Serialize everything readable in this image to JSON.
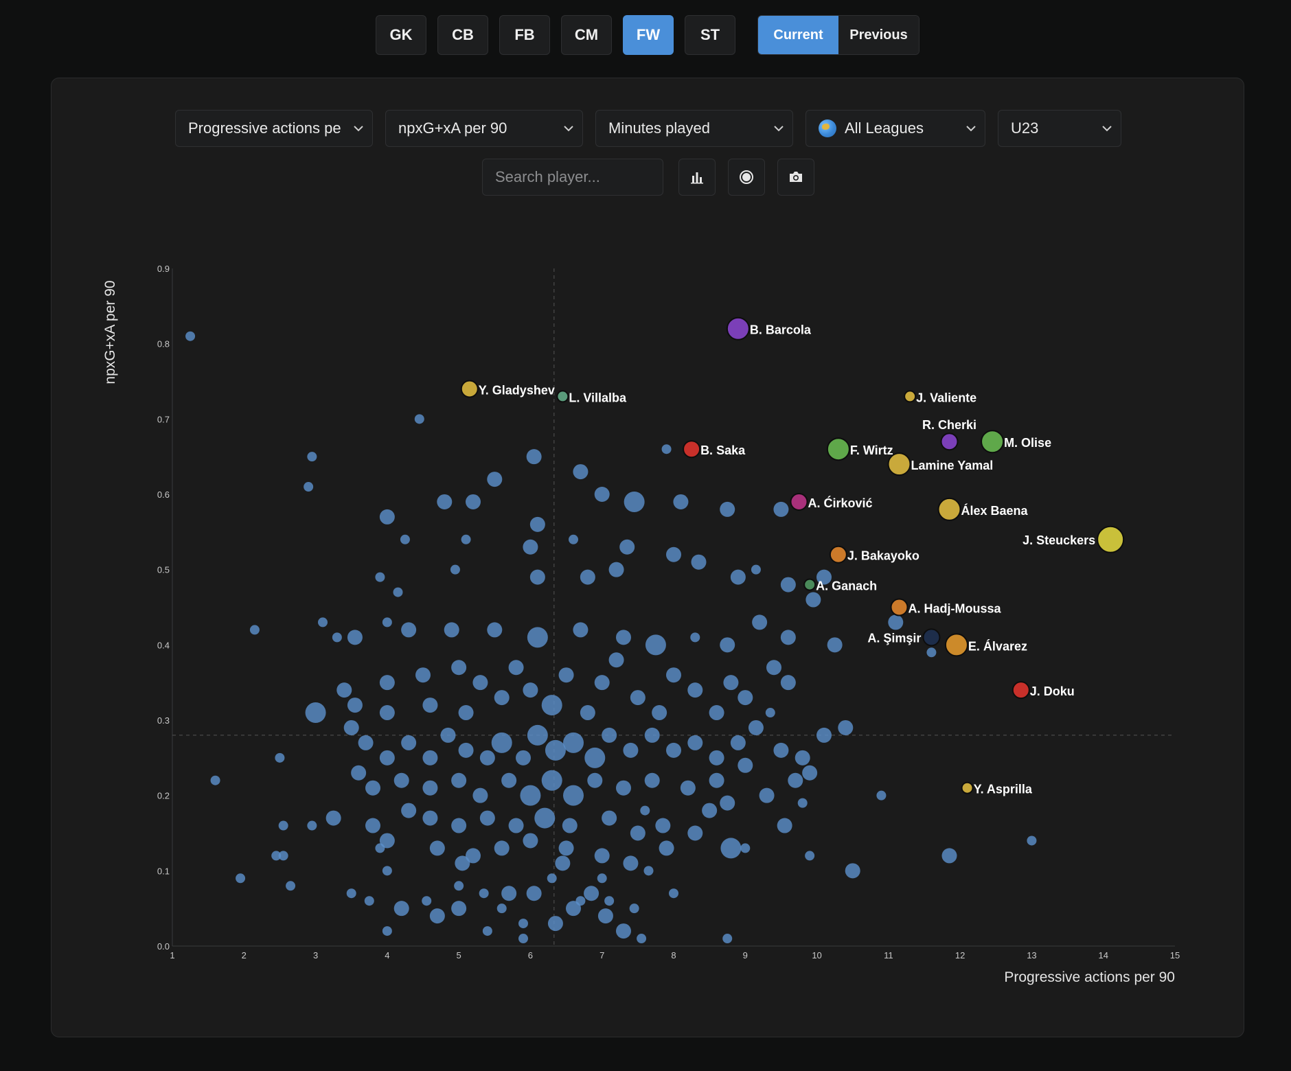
{
  "positions": [
    "GK",
    "CB",
    "FB",
    "CM",
    "FW",
    "ST"
  ],
  "active_position": "FW",
  "season_toggle": {
    "options": [
      "Current",
      "Previous"
    ],
    "active": "Current"
  },
  "filters": {
    "x_metric": "Progressive actions pe",
    "y_metric": "npxG+xA per 90",
    "size_metric": "Minutes played",
    "league": "All Leagues",
    "age": "U23"
  },
  "search": {
    "placeholder": "Search player..."
  },
  "toolbar_icons": [
    "bar-chart-icon",
    "bubble-icon",
    "camera-icon"
  ],
  "colors": {
    "accent": "#4a8fd9",
    "bubble": "#5b8fc9"
  },
  "chart_data": {
    "type": "scatter",
    "title": "",
    "xlabel": "Progressive actions per 90",
    "ylabel": "npxG+xA per 90",
    "xlim": [
      1,
      15
    ],
    "ylim": [
      0,
      0.9
    ],
    "xticks": [
      "1",
      "2",
      "3",
      "4",
      "5",
      "6",
      "7",
      "8",
      "9",
      "10",
      "11",
      "12",
      "13",
      "14",
      "15"
    ],
    "yticks": [
      "0.0",
      "0.1",
      "0.2",
      "0.3",
      "0.4",
      "0.5",
      "0.6",
      "0.7",
      "0.8",
      "0.9"
    ],
    "average_lines": {
      "x": 6.33,
      "y": 0.28
    },
    "grid": false,
    "size_encodes": "Minutes played",
    "highlighted": [
      {
        "name": "B. Barcola",
        "x": 8.9,
        "y": 0.82,
        "size": 3,
        "color": "#7b3fb8",
        "label_side": "right"
      },
      {
        "name": "Y. Gladyshev",
        "x": 5.15,
        "y": 0.74,
        "size": 2,
        "color": "#c8a83a",
        "label_side": "right"
      },
      {
        "name": "L. Villalba",
        "x": 6.45,
        "y": 0.73,
        "size": 1,
        "color": "#5a9a7a",
        "label_side": "right"
      },
      {
        "name": "J. Valiente",
        "x": 11.3,
        "y": 0.73,
        "size": 1,
        "color": "#c9a93b",
        "label_side": "right"
      },
      {
        "name": "R. Cherki",
        "x": 11.85,
        "y": 0.67,
        "size": 2,
        "color": "#7b3fb8",
        "label_side": "above"
      },
      {
        "name": "M. Olise",
        "x": 12.45,
        "y": 0.67,
        "size": 3,
        "color": "#5fa84a",
        "label_side": "right"
      },
      {
        "name": "B. Saka",
        "x": 8.25,
        "y": 0.66,
        "size": 2,
        "color": "#c8302a",
        "label_side": "right"
      },
      {
        "name": "F. Wirtz",
        "x": 10.3,
        "y": 0.66,
        "size": 3,
        "color": "#5fa84a",
        "label_side": "right"
      },
      {
        "name": "Lamine Yamal",
        "x": 11.15,
        "y": 0.64,
        "size": 3,
        "color": "#c9a93b",
        "label_side": "right"
      },
      {
        "name": "A. Ćirković",
        "x": 9.75,
        "y": 0.59,
        "size": 2,
        "color": "#a8307a",
        "label_side": "right"
      },
      {
        "name": "Álex Baena",
        "x": 11.85,
        "y": 0.58,
        "size": 3,
        "color": "#c9a93b",
        "label_side": "right"
      },
      {
        "name": "J. Steuckers",
        "x": 14.1,
        "y": 0.54,
        "size": 4,
        "color": "#c9c03a",
        "label_side": "left"
      },
      {
        "name": "J. Bakayoko",
        "x": 10.3,
        "y": 0.52,
        "size": 2,
        "color": "#cc7a2a",
        "label_side": "right"
      },
      {
        "name": "A. Ganach",
        "x": 9.9,
        "y": 0.48,
        "size": 1,
        "color": "#4a8a5a",
        "label_side": "right"
      },
      {
        "name": "A. Hadj-Moussa",
        "x": 11.15,
        "y": 0.45,
        "size": 2,
        "color": "#cc7a2a",
        "label_side": "right"
      },
      {
        "name": "A. Şimşir",
        "x": 11.6,
        "y": 0.41,
        "size": 2,
        "color": "#1d2d4a",
        "label_side": "left"
      },
      {
        "name": "E. Álvarez",
        "x": 11.95,
        "y": 0.4,
        "size": 3,
        "color": "#cc8a2a",
        "label_side": "right"
      },
      {
        "name": "J. Doku",
        "x": 12.85,
        "y": 0.34,
        "size": 2,
        "color": "#c8302a",
        "label_side": "right"
      },
      {
        "name": "Y. Asprilla",
        "x": 12.1,
        "y": 0.21,
        "size": 1,
        "color": "#c9a93b",
        "label_side": "right"
      }
    ],
    "others": [
      {
        "x": 1.25,
        "y": 0.81,
        "s": 1
      },
      {
        "x": 4.45,
        "y": 0.7,
        "s": 1
      },
      {
        "x": 2.95,
        "y": 0.65,
        "s": 1
      },
      {
        "x": 2.9,
        "y": 0.61,
        "s": 1
      },
      {
        "x": 6.05,
        "y": 0.65,
        "s": 2
      },
      {
        "x": 5.5,
        "y": 0.62,
        "s": 2
      },
      {
        "x": 6.7,
        "y": 0.63,
        "s": 2
      },
      {
        "x": 7.9,
        "y": 0.66,
        "s": 1
      },
      {
        "x": 4.8,
        "y": 0.59,
        "s": 2
      },
      {
        "x": 5.2,
        "y": 0.59,
        "s": 2
      },
      {
        "x": 7.0,
        "y": 0.6,
        "s": 2
      },
      {
        "x": 7.45,
        "y": 0.59,
        "s": 3
      },
      {
        "x": 8.1,
        "y": 0.59,
        "s": 2
      },
      {
        "x": 8.75,
        "y": 0.58,
        "s": 2
      },
      {
        "x": 9.5,
        "y": 0.58,
        "s": 2
      },
      {
        "x": 4.0,
        "y": 0.57,
        "s": 2
      },
      {
        "x": 6.1,
        "y": 0.56,
        "s": 2
      },
      {
        "x": 4.25,
        "y": 0.54,
        "s": 1
      },
      {
        "x": 5.1,
        "y": 0.54,
        "s": 1
      },
      {
        "x": 6.0,
        "y": 0.53,
        "s": 2
      },
      {
        "x": 6.6,
        "y": 0.54,
        "s": 1
      },
      {
        "x": 7.35,
        "y": 0.53,
        "s": 2
      },
      {
        "x": 8.0,
        "y": 0.52,
        "s": 2
      },
      {
        "x": 8.35,
        "y": 0.51,
        "s": 2
      },
      {
        "x": 3.9,
        "y": 0.49,
        "s": 1
      },
      {
        "x": 4.15,
        "y": 0.47,
        "s": 1
      },
      {
        "x": 4.95,
        "y": 0.5,
        "s": 1
      },
      {
        "x": 6.1,
        "y": 0.49,
        "s": 2
      },
      {
        "x": 6.8,
        "y": 0.49,
        "s": 2
      },
      {
        "x": 7.2,
        "y": 0.5,
        "s": 2
      },
      {
        "x": 8.9,
        "y": 0.49,
        "s": 2
      },
      {
        "x": 9.15,
        "y": 0.5,
        "s": 1
      },
      {
        "x": 9.6,
        "y": 0.48,
        "s": 2
      },
      {
        "x": 10.1,
        "y": 0.49,
        "s": 2
      },
      {
        "x": 9.95,
        "y": 0.46,
        "s": 2
      },
      {
        "x": 11.1,
        "y": 0.43,
        "s": 2
      },
      {
        "x": 10.25,
        "y": 0.4,
        "s": 2
      },
      {
        "x": 11.6,
        "y": 0.39,
        "s": 1
      },
      {
        "x": 3.1,
        "y": 0.43,
        "s": 1
      },
      {
        "x": 3.3,
        "y": 0.41,
        "s": 1
      },
      {
        "x": 3.55,
        "y": 0.41,
        "s": 2
      },
      {
        "x": 2.15,
        "y": 0.42,
        "s": 1
      },
      {
        "x": 4.0,
        "y": 0.43,
        "s": 1
      },
      {
        "x": 4.3,
        "y": 0.42,
        "s": 2
      },
      {
        "x": 4.9,
        "y": 0.42,
        "s": 2
      },
      {
        "x": 5.5,
        "y": 0.42,
        "s": 2
      },
      {
        "x": 6.1,
        "y": 0.41,
        "s": 3
      },
      {
        "x": 6.7,
        "y": 0.42,
        "s": 2
      },
      {
        "x": 7.3,
        "y": 0.41,
        "s": 2
      },
      {
        "x": 7.75,
        "y": 0.4,
        "s": 3
      },
      {
        "x": 8.3,
        "y": 0.41,
        "s": 1
      },
      {
        "x": 8.75,
        "y": 0.4,
        "s": 2
      },
      {
        "x": 9.2,
        "y": 0.43,
        "s": 2
      },
      {
        "x": 9.6,
        "y": 0.41,
        "s": 2
      },
      {
        "x": 9.4,
        "y": 0.37,
        "s": 2
      },
      {
        "x": 8.8,
        "y": 0.35,
        "s": 2
      },
      {
        "x": 3.4,
        "y": 0.34,
        "s": 2
      },
      {
        "x": 3.55,
        "y": 0.32,
        "s": 2
      },
      {
        "x": 3.0,
        "y": 0.31,
        "s": 3
      },
      {
        "x": 3.5,
        "y": 0.29,
        "s": 2
      },
      {
        "x": 4.0,
        "y": 0.35,
        "s": 2
      },
      {
        "x": 4.0,
        "y": 0.31,
        "s": 2
      },
      {
        "x": 4.5,
        "y": 0.36,
        "s": 2
      },
      {
        "x": 4.6,
        "y": 0.32,
        "s": 2
      },
      {
        "x": 5.0,
        "y": 0.37,
        "s": 2
      },
      {
        "x": 5.3,
        "y": 0.35,
        "s": 2
      },
      {
        "x": 5.1,
        "y": 0.31,
        "s": 2
      },
      {
        "x": 5.6,
        "y": 0.33,
        "s": 2
      },
      {
        "x": 5.8,
        "y": 0.37,
        "s": 2
      },
      {
        "x": 6.0,
        "y": 0.34,
        "s": 2
      },
      {
        "x": 6.3,
        "y": 0.32,
        "s": 3
      },
      {
        "x": 6.5,
        "y": 0.36,
        "s": 2
      },
      {
        "x": 6.8,
        "y": 0.31,
        "s": 2
      },
      {
        "x": 7.0,
        "y": 0.35,
        "s": 2
      },
      {
        "x": 7.2,
        "y": 0.38,
        "s": 2
      },
      {
        "x": 7.5,
        "y": 0.33,
        "s": 2
      },
      {
        "x": 7.8,
        "y": 0.31,
        "s": 2
      },
      {
        "x": 8.0,
        "y": 0.36,
        "s": 2
      },
      {
        "x": 8.3,
        "y": 0.34,
        "s": 2
      },
      {
        "x": 8.6,
        "y": 0.31,
        "s": 2
      },
      {
        "x": 9.0,
        "y": 0.33,
        "s": 2
      },
      {
        "x": 9.35,
        "y": 0.31,
        "s": 1
      },
      {
        "x": 9.6,
        "y": 0.35,
        "s": 2
      },
      {
        "x": 10.4,
        "y": 0.29,
        "s": 2
      },
      {
        "x": 10.1,
        "y": 0.28,
        "s": 2
      },
      {
        "x": 9.8,
        "y": 0.25,
        "s": 2
      },
      {
        "x": 9.5,
        "y": 0.26,
        "s": 2
      },
      {
        "x": 9.15,
        "y": 0.29,
        "s": 2
      },
      {
        "x": 8.9,
        "y": 0.27,
        "s": 2
      },
      {
        "x": 8.6,
        "y": 0.25,
        "s": 2
      },
      {
        "x": 8.3,
        "y": 0.27,
        "s": 2
      },
      {
        "x": 8.0,
        "y": 0.26,
        "s": 2
      },
      {
        "x": 7.7,
        "y": 0.28,
        "s": 2
      },
      {
        "x": 7.4,
        "y": 0.26,
        "s": 2
      },
      {
        "x": 7.1,
        "y": 0.28,
        "s": 2
      },
      {
        "x": 6.9,
        "y": 0.25,
        "s": 3
      },
      {
        "x": 6.6,
        "y": 0.27,
        "s": 3
      },
      {
        "x": 6.35,
        "y": 0.26,
        "s": 3
      },
      {
        "x": 6.1,
        "y": 0.28,
        "s": 3
      },
      {
        "x": 5.9,
        "y": 0.25,
        "s": 2
      },
      {
        "x": 5.6,
        "y": 0.27,
        "s": 3
      },
      {
        "x": 5.4,
        "y": 0.25,
        "s": 2
      },
      {
        "x": 5.1,
        "y": 0.26,
        "s": 2
      },
      {
        "x": 4.85,
        "y": 0.28,
        "s": 2
      },
      {
        "x": 4.6,
        "y": 0.25,
        "s": 2
      },
      {
        "x": 4.3,
        "y": 0.27,
        "s": 2
      },
      {
        "x": 4.0,
        "y": 0.25,
        "s": 2
      },
      {
        "x": 3.7,
        "y": 0.27,
        "s": 2
      },
      {
        "x": 3.6,
        "y": 0.23,
        "s": 2
      },
      {
        "x": 2.5,
        "y": 0.25,
        "s": 1
      },
      {
        "x": 1.6,
        "y": 0.22,
        "s": 1
      },
      {
        "x": 3.8,
        "y": 0.21,
        "s": 2
      },
      {
        "x": 4.2,
        "y": 0.22,
        "s": 2
      },
      {
        "x": 4.6,
        "y": 0.21,
        "s": 2
      },
      {
        "x": 5.0,
        "y": 0.22,
        "s": 2
      },
      {
        "x": 5.3,
        "y": 0.2,
        "s": 2
      },
      {
        "x": 5.7,
        "y": 0.22,
        "s": 2
      },
      {
        "x": 6.0,
        "y": 0.2,
        "s": 3
      },
      {
        "x": 6.3,
        "y": 0.22,
        "s": 3
      },
      {
        "x": 6.6,
        "y": 0.2,
        "s": 3
      },
      {
        "x": 6.9,
        "y": 0.22,
        "s": 2
      },
      {
        "x": 7.3,
        "y": 0.21,
        "s": 2
      },
      {
        "x": 7.7,
        "y": 0.22,
        "s": 2
      },
      {
        "x": 8.2,
        "y": 0.21,
        "s": 2
      },
      {
        "x": 8.6,
        "y": 0.22,
        "s": 2
      },
      {
        "x": 9.0,
        "y": 0.24,
        "s": 2
      },
      {
        "x": 9.3,
        "y": 0.2,
        "s": 2
      },
      {
        "x": 9.7,
        "y": 0.22,
        "s": 2
      },
      {
        "x": 10.9,
        "y": 0.2,
        "s": 1
      },
      {
        "x": 8.75,
        "y": 0.19,
        "s": 2
      },
      {
        "x": 8.5,
        "y": 0.18,
        "s": 2
      },
      {
        "x": 7.6,
        "y": 0.18,
        "s": 1
      },
      {
        "x": 3.25,
        "y": 0.17,
        "s": 2
      },
      {
        "x": 2.55,
        "y": 0.16,
        "s": 1
      },
      {
        "x": 2.95,
        "y": 0.16,
        "s": 1
      },
      {
        "x": 3.8,
        "y": 0.16,
        "s": 2
      },
      {
        "x": 4.3,
        "y": 0.18,
        "s": 2
      },
      {
        "x": 4.6,
        "y": 0.17,
        "s": 2
      },
      {
        "x": 5.0,
        "y": 0.16,
        "s": 2
      },
      {
        "x": 5.4,
        "y": 0.17,
        "s": 2
      },
      {
        "x": 5.8,
        "y": 0.16,
        "s": 2
      },
      {
        "x": 6.2,
        "y": 0.17,
        "s": 3
      },
      {
        "x": 6.55,
        "y": 0.16,
        "s": 2
      },
      {
        "x": 7.1,
        "y": 0.17,
        "s": 2
      },
      {
        "x": 7.5,
        "y": 0.15,
        "s": 2
      },
      {
        "x": 7.85,
        "y": 0.16,
        "s": 2
      },
      {
        "x": 8.3,
        "y": 0.15,
        "s": 2
      },
      {
        "x": 9.55,
        "y": 0.16,
        "s": 2
      },
      {
        "x": 3.9,
        "y": 0.13,
        "s": 1
      },
      {
        "x": 4.0,
        "y": 0.14,
        "s": 2
      },
      {
        "x": 4.7,
        "y": 0.13,
        "s": 2
      },
      {
        "x": 5.2,
        "y": 0.12,
        "s": 2
      },
      {
        "x": 5.6,
        "y": 0.13,
        "s": 2
      },
      {
        "x": 6.0,
        "y": 0.14,
        "s": 2
      },
      {
        "x": 6.5,
        "y": 0.13,
        "s": 2
      },
      {
        "x": 7.0,
        "y": 0.12,
        "s": 2
      },
      {
        "x": 7.4,
        "y": 0.11,
        "s": 2
      },
      {
        "x": 7.9,
        "y": 0.13,
        "s": 2
      },
      {
        "x": 8.8,
        "y": 0.13,
        "s": 3
      },
      {
        "x": 9.0,
        "y": 0.13,
        "s": 1
      },
      {
        "x": 2.45,
        "y": 0.12,
        "s": 1
      },
      {
        "x": 2.55,
        "y": 0.12,
        "s": 1
      },
      {
        "x": 9.9,
        "y": 0.12,
        "s": 1
      },
      {
        "x": 11.85,
        "y": 0.12,
        "s": 2
      },
      {
        "x": 13.0,
        "y": 0.14,
        "s": 1
      },
      {
        "x": 10.5,
        "y": 0.1,
        "s": 2
      },
      {
        "x": 5.05,
        "y": 0.11,
        "s": 2
      },
      {
        "x": 6.45,
        "y": 0.11,
        "s": 2
      },
      {
        "x": 7.65,
        "y": 0.1,
        "s": 1
      },
      {
        "x": 1.95,
        "y": 0.09,
        "s": 1
      },
      {
        "x": 2.65,
        "y": 0.08,
        "s": 1
      },
      {
        "x": 4.0,
        "y": 0.1,
        "s": 1
      },
      {
        "x": 5.0,
        "y": 0.08,
        "s": 1
      },
      {
        "x": 6.3,
        "y": 0.09,
        "s": 1
      },
      {
        "x": 7.0,
        "y": 0.09,
        "s": 1
      },
      {
        "x": 3.5,
        "y": 0.07,
        "s": 1
      },
      {
        "x": 3.75,
        "y": 0.06,
        "s": 1
      },
      {
        "x": 4.2,
        "y": 0.05,
        "s": 2
      },
      {
        "x": 4.55,
        "y": 0.06,
        "s": 1
      },
      {
        "x": 4.7,
        "y": 0.04,
        "s": 2
      },
      {
        "x": 5.0,
        "y": 0.05,
        "s": 2
      },
      {
        "x": 5.35,
        "y": 0.07,
        "s": 1
      },
      {
        "x": 5.6,
        "y": 0.05,
        "s": 1
      },
      {
        "x": 5.7,
        "y": 0.07,
        "s": 2
      },
      {
        "x": 5.9,
        "y": 0.03,
        "s": 1
      },
      {
        "x": 6.35,
        "y": 0.03,
        "s": 2
      },
      {
        "x": 6.6,
        "y": 0.05,
        "s": 2
      },
      {
        "x": 6.85,
        "y": 0.07,
        "s": 2
      },
      {
        "x": 7.05,
        "y": 0.04,
        "s": 2
      },
      {
        "x": 7.3,
        "y": 0.02,
        "s": 2
      },
      {
        "x": 7.55,
        "y": 0.01,
        "s": 1
      },
      {
        "x": 5.9,
        "y": 0.01,
        "s": 1
      },
      {
        "x": 8.0,
        "y": 0.07,
        "s": 1
      },
      {
        "x": 8.75,
        "y": 0.01,
        "s": 1
      },
      {
        "x": 4.0,
        "y": 0.02,
        "s": 1
      },
      {
        "x": 7.45,
        "y": 0.05,
        "s": 1
      },
      {
        "x": 5.4,
        "y": 0.02,
        "s": 1
      },
      {
        "x": 6.7,
        "y": 0.06,
        "s": 1
      },
      {
        "x": 7.1,
        "y": 0.06,
        "s": 1
      },
      {
        "x": 6.05,
        "y": 0.07,
        "s": 2
      },
      {
        "x": 9.8,
        "y": 0.19,
        "s": 1
      },
      {
        "x": 9.9,
        "y": 0.23,
        "s": 2
      }
    ]
  }
}
